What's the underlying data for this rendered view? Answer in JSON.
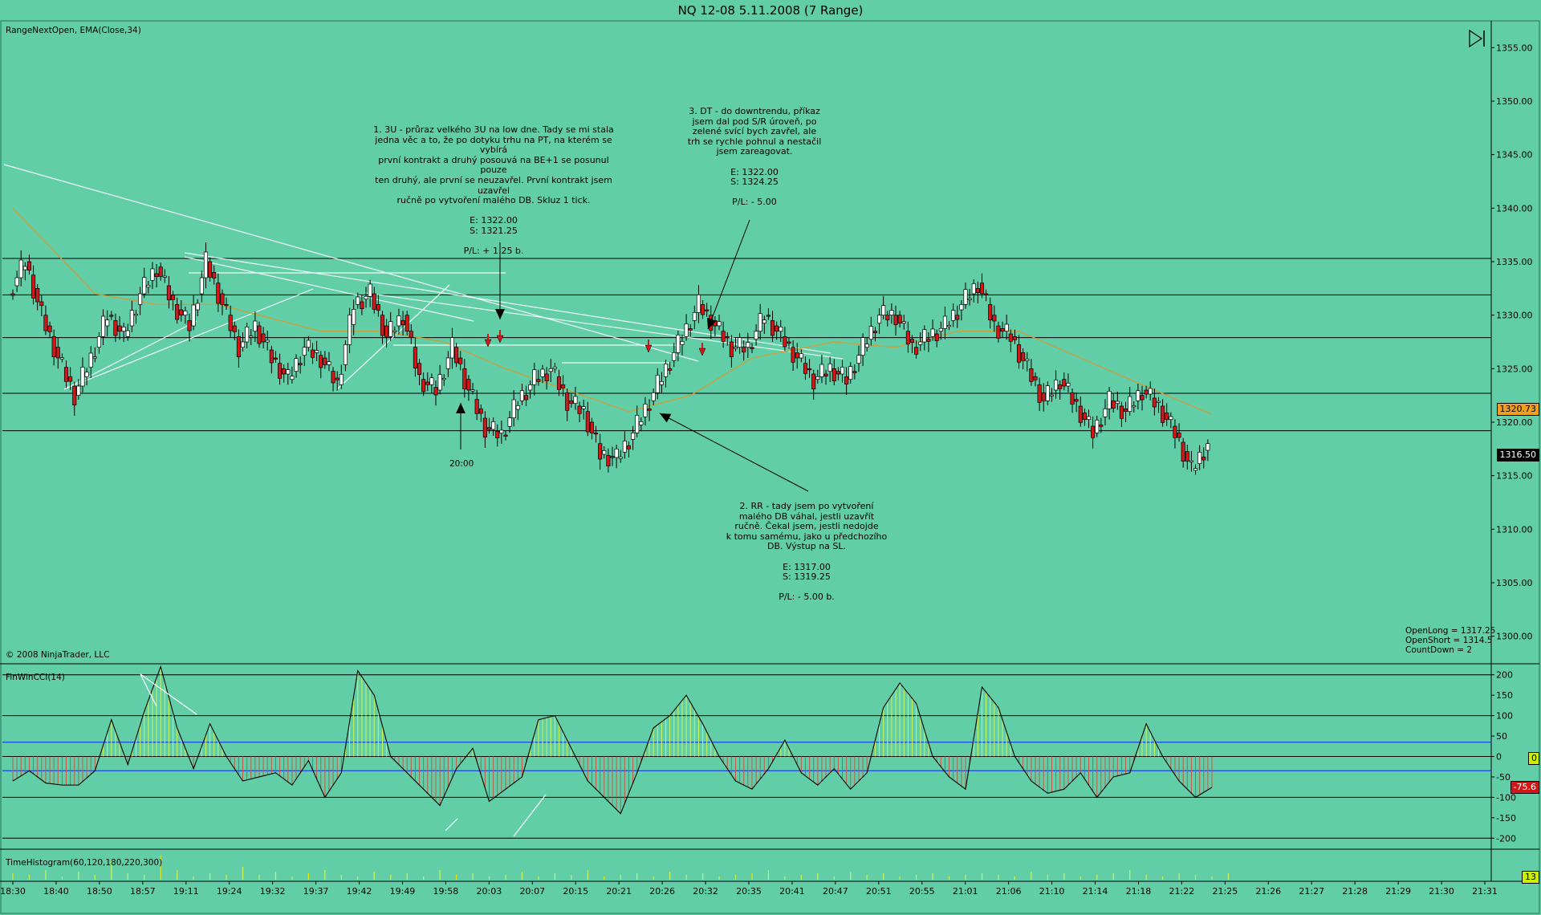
{
  "window": {
    "title": "NQ 12-08  5.11.2008 (7 Range)"
  },
  "panels": {
    "price_label": "RangeNextOpen, EMA(Close,34)",
    "copyright": "© 2008 NinjaTrader, LLC",
    "cci_label": "FinWinCCI(14)",
    "time_hist_label": "TimeHistogram(60,120,180,220,300)"
  },
  "stats": [
    "OpenLong = 1317.25",
    "OpenShort = 1314.5",
    "CountDown = 2"
  ],
  "price_tags": {
    "ema": "1320.73",
    "last": "1316.50",
    "cci": "-75.6",
    "cci_zero": "0",
    "hist": "13"
  },
  "annotations": {
    "note1": "1. 3U - průraz velkého 3U na low dne. Tady se mi stala\njedna věc a to, že po dotyku trhu na PT, na kterém se vybírá\nprvní kontrakt a druhý posouvá na BE+1 se posunul pouze\nten druhý, ale první se neuzavřel. První kontrakt jsem uzavřel\nručně po vytvoření malého DB. Skluz 1 tick.\n\nE: 1322.00\nS: 1321.25\n\nP/L: + 1.25 b.",
    "note2": "2. RR - tady jsem po vytvoření\nmalého DB váhal, jestli uzavřít\nručně. Čekal jsem, jestli nedojde\nk tomu samému, jako u předchozího\nDB. Výstup na SL.\n\nE: 1317.00\nS: 1319.25\n\nP/L: - 5.00 b.",
    "note3": "3. DT - do downtrendu, příkaz\njsem dal pod S/R úroveň, po\nzelené svící bych zavřel, ale\ntrh se rychle pohnul a nestačil\njsem zareagovat.\n\nE: 1322.00\nS: 1324.25\n\nP/L: - 5.00",
    "time_label": "20:00"
  },
  "chart_data": [
    {
      "type": "candlestick",
      "title": "NQ 12-08  5.11.2008 (7 Range)",
      "ylim": [
        1297.5,
        1357.5
      ],
      "y_ticks": [
        "1355.00",
        "1350.00",
        "1345.00",
        "1340.00",
        "1335.00",
        "1330.00",
        "1325.00",
        "1320.00",
        "1315.00",
        "1310.00",
        "1305.00",
        "1300.00"
      ],
      "x_ticks": [
        "18:30",
        "18:40",
        "18:50",
        "18:57",
        "19:11",
        "19:24",
        "19:32",
        "19:37",
        "19:42",
        "19:49",
        "19:58",
        "20:03",
        "20:07",
        "20:15",
        "20:21",
        "20:26",
        "20:32",
        "20:35",
        "20:41",
        "20:47",
        "20:51",
        "20:55",
        "21:01",
        "21:06",
        "21:10",
        "21:14",
        "21:18",
        "21:22",
        "21:25",
        "21:26",
        "21:27",
        "21:28",
        "21:29",
        "21:30",
        "21:31"
      ],
      "sr_levels": [
        1335.3,
        1331.9,
        1327.9,
        1322.7,
        1319.2
      ],
      "close_path": [
        [
          0,
          1332
        ],
        [
          4,
          1335
        ],
        [
          8,
          1330
        ],
        [
          12,
          1326
        ],
        [
          16,
          1322.5
        ],
        [
          20,
          1326
        ],
        [
          24,
          1330
        ],
        [
          28,
          1328
        ],
        [
          32,
          1332
        ],
        [
          36,
          1334.5
        ],
        [
          40,
          1331
        ],
        [
          44,
          1329
        ],
        [
          48,
          1335
        ],
        [
          52,
          1331
        ],
        [
          56,
          1327
        ],
        [
          60,
          1329
        ],
        [
          64,
          1326
        ],
        [
          68,
          1324
        ],
        [
          72,
          1327
        ],
        [
          76,
          1326
        ],
        [
          80,
          1323.5
        ],
        [
          84,
          1331
        ],
        [
          88,
          1332
        ],
        [
          92,
          1328
        ],
        [
          96,
          1330
        ],
        [
          100,
          1324
        ],
        [
          104,
          1323
        ],
        [
          108,
          1327
        ],
        [
          112,
          1323
        ],
        [
          116,
          1319.5
        ],
        [
          120,
          1318.8
        ],
        [
          124,
          1322
        ],
        [
          128,
          1324
        ],
        [
          132,
          1325
        ],
        [
          136,
          1322
        ],
        [
          140,
          1321
        ],
        [
          144,
          1317
        ],
        [
          148,
          1316.6
        ],
        [
          152,
          1319
        ],
        [
          156,
          1322
        ],
        [
          160,
          1325
        ],
        [
          164,
          1328
        ],
        [
          168,
          1331
        ],
        [
          172,
          1329
        ],
        [
          176,
          1327
        ],
        [
          180,
          1327
        ],
        [
          184,
          1330
        ],
        [
          188,
          1328
        ],
        [
          192,
          1326
        ],
        [
          196,
          1324
        ],
        [
          200,
          1325
        ],
        [
          204,
          1324
        ],
        [
          208,
          1327
        ],
        [
          212,
          1330
        ],
        [
          216,
          1330
        ],
        [
          220,
          1327
        ],
        [
          224,
          1328
        ],
        [
          228,
          1329
        ],
        [
          232,
          1331
        ],
        [
          236,
          1333
        ],
        [
          240,
          1329
        ],
        [
          244,
          1328
        ],
        [
          248,
          1325
        ],
        [
          252,
          1322
        ],
        [
          256,
          1324
        ],
        [
          260,
          1321.5
        ],
        [
          264,
          1319
        ],
        [
          268,
          1322
        ],
        [
          272,
          1321
        ],
        [
          276,
          1323
        ],
        [
          280,
          1321.5
        ],
        [
          284,
          1319
        ],
        [
          288,
          1315.5
        ],
        [
          292,
          1318
        ]
      ],
      "ema_path": [
        [
          0,
          1340
        ],
        [
          10,
          1336
        ],
        [
          20,
          1332
        ],
        [
          35,
          1331
        ],
        [
          50,
          1331
        ],
        [
          60,
          1330
        ],
        [
          75,
          1328.5
        ],
        [
          90,
          1328.5
        ],
        [
          105,
          1327.5
        ],
        [
          120,
          1325
        ],
        [
          135,
          1323
        ],
        [
          150,
          1321
        ],
        [
          165,
          1322.5
        ],
        [
          180,
          1326
        ],
        [
          200,
          1327.5
        ],
        [
          215,
          1327
        ],
        [
          230,
          1328.5
        ],
        [
          245,
          1328.5
        ],
        [
          260,
          1326
        ],
        [
          275,
          1323.5
        ],
        [
          292,
          1320.73
        ]
      ],
      "cci": {
        "ylim": [
          -225,
          225
        ],
        "y_ticks": [
          "200",
          "150",
          "100",
          "50",
          "0",
          "-50",
          "-100",
          "-150",
          "-200"
        ],
        "blue_levels": [
          35,
          -35
        ],
        "path": [
          [
            0,
            -60
          ],
          [
            4,
            -35
          ],
          [
            8,
            -65
          ],
          [
            12,
            -70
          ],
          [
            16,
            -70
          ],
          [
            20,
            -35
          ],
          [
            24,
            90
          ],
          [
            28,
            -20
          ],
          [
            32,
            110
          ],
          [
            36,
            220
          ],
          [
            40,
            70
          ],
          [
            44,
            -30
          ],
          [
            48,
            80
          ],
          [
            52,
            0
          ],
          [
            56,
            -60
          ],
          [
            60,
            -50
          ],
          [
            64,
            -40
          ],
          [
            68,
            -70
          ],
          [
            72,
            -10
          ],
          [
            76,
            -100
          ],
          [
            80,
            -40
          ],
          [
            84,
            210
          ],
          [
            88,
            150
          ],
          [
            92,
            0
          ],
          [
            96,
            -40
          ],
          [
            100,
            -80
          ],
          [
            104,
            -120
          ],
          [
            108,
            -30
          ],
          [
            112,
            20
          ],
          [
            116,
            -110
          ],
          [
            120,
            -80
          ],
          [
            124,
            -50
          ],
          [
            128,
            90
          ],
          [
            132,
            100
          ],
          [
            136,
            20
          ],
          [
            140,
            -60
          ],
          [
            144,
            -100
          ],
          [
            148,
            -140
          ],
          [
            152,
            -40
          ],
          [
            156,
            70
          ],
          [
            160,
            100
          ],
          [
            164,
            150
          ],
          [
            168,
            80
          ],
          [
            172,
            0
          ],
          [
            176,
            -60
          ],
          [
            180,
            -80
          ],
          [
            184,
            -30
          ],
          [
            188,
            40
          ],
          [
            192,
            -40
          ],
          [
            196,
            -70
          ],
          [
            200,
            -30
          ],
          [
            204,
            -80
          ],
          [
            208,
            -40
          ],
          [
            212,
            120
          ],
          [
            216,
            180
          ],
          [
            220,
            130
          ],
          [
            224,
            0
          ],
          [
            228,
            -50
          ],
          [
            232,
            -80
          ],
          [
            236,
            170
          ],
          [
            240,
            120
          ],
          [
            244,
            0
          ],
          [
            248,
            -60
          ],
          [
            252,
            -90
          ],
          [
            256,
            -80
          ],
          [
            260,
            -40
          ],
          [
            264,
            -100
          ],
          [
            268,
            -50
          ],
          [
            272,
            -40
          ],
          [
            276,
            80
          ],
          [
            280,
            0
          ],
          [
            284,
            -60
          ],
          [
            288,
            -100
          ],
          [
            292,
            -75.6
          ]
        ]
      },
      "time_histogram": {
        "bars": [
          4,
          3,
          6,
          2,
          5,
          3,
          12,
          4,
          3,
          15,
          6,
          2,
          4,
          3,
          8,
          3,
          5,
          2,
          4,
          6,
          3,
          2,
          5,
          3,
          4,
          2,
          6,
          3,
          4,
          2,
          3,
          5,
          2,
          4,
          3,
          6,
          2,
          3,
          4,
          2,
          5,
          3,
          4,
          2,
          3,
          4,
          6,
          2,
          3,
          4,
          2,
          5,
          3,
          4,
          2,
          3,
          4,
          2,
          3,
          4,
          3,
          2,
          5,
          3,
          4,
          2,
          3,
          4,
          6,
          3,
          2,
          4,
          3,
          2,
          4
        ]
      }
    }
  ]
}
